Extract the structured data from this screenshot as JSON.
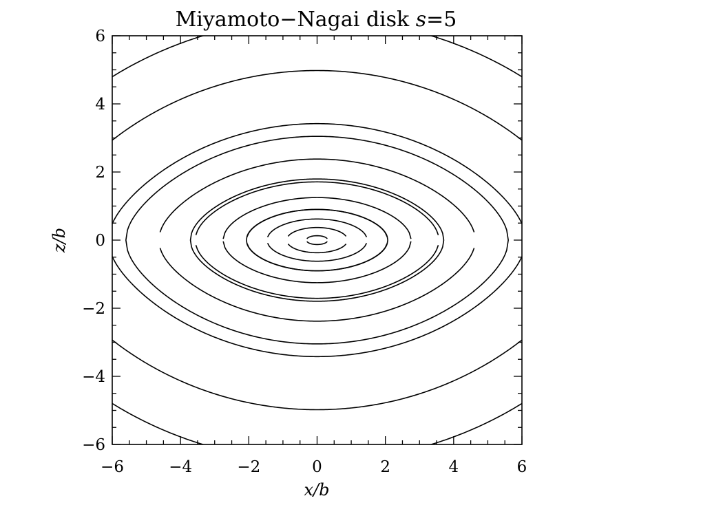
{
  "chart_data": {
    "type": "contour",
    "title": "Miyamoto−Nagai disk s=5",
    "title_parts": {
      "prefix": "Miyamoto−Nagai disk ",
      "var": "s",
      "suffix": "=5"
    },
    "xlabel": "x/b",
    "ylabel": "z/b",
    "xlim": [
      -6,
      6
    ],
    "ylim": [
      -6,
      6
    ],
    "x_ticks": [
      -6,
      -4,
      -2,
      0,
      2,
      4,
      6
    ],
    "y_ticks": [
      -6,
      -4,
      -2,
      0,
      2,
      4,
      6
    ],
    "x_tick_labels": [
      "−6",
      "−4",
      "−2",
      "0",
      "2",
      "4",
      "6"
    ],
    "y_tick_labels": [
      "−6",
      "−4",
      "−2",
      "0",
      "2",
      "4",
      "6"
    ],
    "minor_tick_step": 0.5,
    "model": {
      "name": "Miyamoto-Nagai",
      "s": 5
    },
    "contours": {
      "closed_half_widths_x": [
        2.07,
        3.71,
        5.6
      ],
      "open_z_at_center": [
        0.13,
        0.37,
        0.62,
        0.9,
        1.25,
        1.71,
        2.38,
        3.42,
        4.98,
        6.5
      ]
    },
    "line_color": "#000000",
    "background": "#ffffff",
    "grid": false,
    "legend": "none"
  }
}
